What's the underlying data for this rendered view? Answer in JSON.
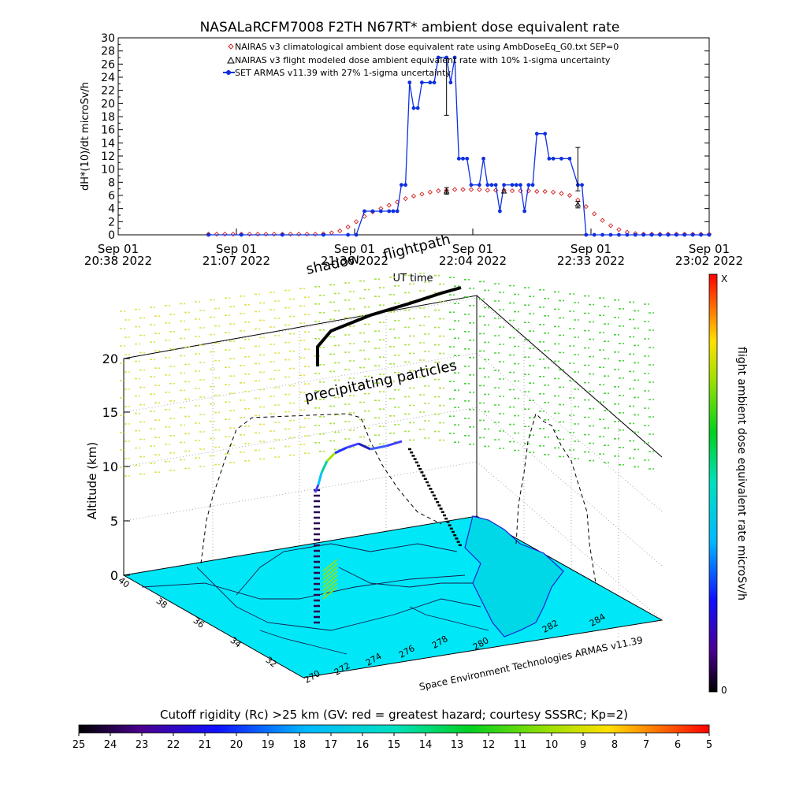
{
  "title": "NASALaRCFM7008  F2TH N67RT* ambient dose equivalent rate",
  "colors": {
    "nairas_clim": "#d02020",
    "nairas_flight": "#000000",
    "armas": "#1030e0"
  },
  "legend": [
    "NAIRAS v3 climatological ambient dose equivalent rate using AmbDoseEq_G0.txt SEP=0",
    "NAIRAS v3 flight modeled dose ambient equivalent rate with 10% 1-sigma uncertainty",
    "SET ARMAS v11.39 with 27% 1-sigma uncertainty"
  ],
  "ylabel": "dH*(10)/dt microSv/h",
  "xlabel": "UT time",
  "time_ticks": [
    {
      "day": "Sep 01",
      "time": "20:38 2022"
    },
    {
      "day": "Sep 01",
      "time": "21:07 2022"
    },
    {
      "day": "Sep 01",
      "time": "21:36 2022"
    },
    {
      "day": "Sep 01",
      "time": "22:04 2022"
    },
    {
      "day": "Sep 01",
      "time": "22:33 2022"
    },
    {
      "day": "Sep 01",
      "time": "23:02 2022"
    }
  ],
  "chart_data": {
    "type": "line",
    "x_unit": "UT minutes after 20:38",
    "xlim": [
      0,
      144
    ],
    "ylim": [
      0,
      30
    ],
    "yticks": [
      0,
      2,
      4,
      6,
      8,
      10,
      12,
      14,
      16,
      18,
      20,
      22,
      24,
      26,
      28,
      30
    ],
    "series": [
      {
        "name": "NAIRAS v3 climatological ambient dose equivalent rate using AmbDoseEq_G0.txt SEP=0",
        "marker": "diamond",
        "x": [
          22,
          24,
          26,
          28,
          30,
          32,
          34,
          36,
          38,
          40,
          42,
          44,
          46,
          48,
          50,
          52,
          54,
          56,
          58,
          60,
          62,
          64,
          66,
          68,
          70,
          72,
          74,
          76,
          78,
          80,
          82,
          84,
          86,
          88,
          90,
          92,
          94,
          96,
          98,
          100,
          102,
          104,
          106,
          108,
          110,
          112,
          114,
          116,
          118,
          120,
          122,
          124,
          126,
          128,
          130,
          132,
          134,
          136,
          138,
          140,
          142,
          144
        ],
        "y": [
          0.1,
          0.1,
          0.1,
          0.1,
          0.1,
          0.1,
          0.1,
          0.1,
          0.1,
          0.1,
          0.1,
          0.1,
          0.1,
          0.1,
          0.15,
          0.3,
          0.6,
          1.2,
          2.0,
          2.8,
          3.5,
          4.0,
          4.5,
          5.0,
          5.5,
          5.9,
          6.2,
          6.5,
          6.7,
          6.8,
          6.9,
          6.9,
          6.9,
          6.9,
          6.8,
          6.8,
          6.8,
          6.7,
          6.7,
          6.7,
          6.6,
          6.6,
          6.5,
          6.3,
          6.0,
          5.3,
          4.3,
          3.2,
          2.2,
          1.4,
          0.8,
          0.4,
          0.2,
          0.1,
          0.1,
          0.1,
          0.1,
          0.1,
          0.1,
          0.1,
          0.1,
          0.1
        ]
      },
      {
        "name": "NAIRAS v3 flight modeled dose ambient equivalent rate with 10% 1-sigma uncertainty",
        "marker": "triangle",
        "x": [
          80,
          94,
          112
        ],
        "y": [
          6.6,
          6.6,
          4.6
        ]
      },
      {
        "name": "SET ARMAS v11.39 with 27% 1-sigma uncertainty",
        "marker": "dot",
        "x": [
          22,
          30,
          40,
          50,
          56,
          58,
          60,
          62,
          64,
          66,
          67,
          68,
          69,
          70,
          71,
          72,
          73,
          74,
          76,
          77,
          78,
          80,
          81,
          82,
          83,
          84,
          85,
          86,
          88,
          89,
          90,
          91,
          92,
          93,
          94,
          96,
          97,
          98,
          99,
          100,
          101,
          102,
          104,
          105,
          106,
          108,
          110,
          112,
          113,
          114,
          116,
          118,
          120,
          122,
          124,
          126,
          128,
          130,
          132,
          134,
          136,
          138,
          140,
          142,
          144
        ],
        "y": [
          0,
          0,
          0,
          0,
          0,
          0,
          3.6,
          3.6,
          3.6,
          3.6,
          3.6,
          3.6,
          7.6,
          7.6,
          23.2,
          19.3,
          19.3,
          23.2,
          23.2,
          23.2,
          27.0,
          27.0,
          23.2,
          27.0,
          11.6,
          11.6,
          11.6,
          7.6,
          7.6,
          11.6,
          7.6,
          7.6,
          7.6,
          3.6,
          7.6,
          7.6,
          7.6,
          7.6,
          3.6,
          7.6,
          7.6,
          15.4,
          15.4,
          11.6,
          11.6,
          11.6,
          11.6,
          7.6,
          7.6,
          0,
          0,
          0,
          0,
          0,
          0,
          0,
          0,
          0,
          0,
          0,
          0,
          0,
          0,
          0,
          0
        ]
      }
    ],
    "error_bars": [
      {
        "x": 80,
        "center": 22.5,
        "low": 18.2,
        "high": 26.8
      },
      {
        "x": 80,
        "center": 6.7,
        "low": 6.2,
        "high": 7.2
      },
      {
        "x": 112,
        "center": 10.0,
        "low": 6.7,
        "high": 13.3
      },
      {
        "x": 112,
        "center": 4.6,
        "low": 4.1,
        "high": 5.1
      }
    ]
  },
  "scene": {
    "shadow_label": "shadow",
    "flightpath_label": "flightpath",
    "precip_label": "precipitating particles",
    "z_label": "Altitude (km)",
    "z_ticks": [
      "0",
      "5",
      "10",
      "15",
      "20"
    ],
    "lat_ticks": [
      "40",
      "38",
      "36",
      "34",
      "32"
    ],
    "lon_ticks": [
      "270",
      "272",
      "274",
      "276",
      "278",
      "280",
      "282",
      "284"
    ],
    "footer": "Space Environment Technologies ARMAS v11.39"
  },
  "right_colorbar": {
    "label": "flight ambient dose equivalent rate microSv/h",
    "top": "X",
    "bottom": "0"
  },
  "bottom_colorbar": {
    "title": "Cutoff rigidity (Rc) >25 km (GV: red = greatest hazard; courtesy SSSRC; Kp=2)",
    "ticks": [
      "25",
      "24",
      "23",
      "22",
      "21",
      "20",
      "19",
      "18",
      "17",
      "16",
      "15",
      "14",
      "13",
      "12",
      "11",
      "10",
      "9",
      "8",
      "7",
      "6",
      "5"
    ]
  }
}
